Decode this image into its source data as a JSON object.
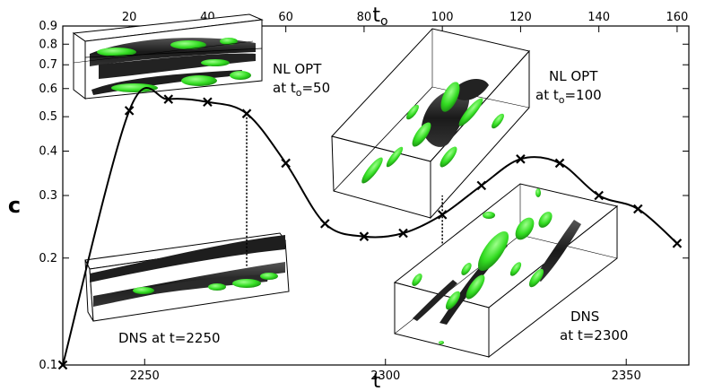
{
  "chart_data": {
    "type": "line",
    "title": "",
    "xlabel": "t",
    "x2label": "t",
    "x2label_sub": "o",
    "ylabel": "c",
    "y_scale": "log",
    "xlim": [
      2233,
      2363
    ],
    "x2lim": [
      3,
      163
    ],
    "ylim": [
      0.1,
      0.9
    ],
    "x_ticks": [
      2250,
      2300,
      2350
    ],
    "x_tick_labels": [
      "2250",
      "2300",
      "2350"
    ],
    "x2_ticks": [
      20,
      40,
      60,
      80,
      100,
      120,
      140,
      160
    ],
    "x2_tick_labels": [
      "20",
      "40",
      "60",
      "80",
      "100",
      "120",
      "140",
      "160"
    ],
    "y_ticks": [
      0.1,
      0.2,
      0.3,
      0.4,
      0.5,
      0.6,
      0.7,
      0.8,
      0.9
    ],
    "y_tick_labels": [
      "0.1",
      "0.2",
      "0.3",
      "0.4",
      "0.5",
      "0.6",
      "0.7",
      "0.8",
      "0.9"
    ],
    "series": [
      {
        "x2": [
          3,
          20,
          30,
          40,
          50,
          60,
          70,
          80,
          90,
          100,
          110,
          120,
          130,
          140,
          150,
          160
        ],
        "values": [
          0.1,
          0.52,
          0.56,
          0.55,
          0.51,
          0.37,
          0.25,
          0.23,
          0.235,
          0.265,
          0.32,
          0.38,
          0.37,
          0.3,
          0.275,
          0.22
        ],
        "marker": "x",
        "color": "#000000"
      }
    ],
    "reference_lines": [
      {
        "x2": 50,
        "y_from": 0.51,
        "y_to": 0.19
      },
      {
        "x2": 100,
        "y_from": 0.22,
        "y_to": 0.3
      }
    ],
    "annotations": [
      {
        "lines": [
          "NL OPT",
          "at t",
          "=50"
        ],
        "sub": "o"
      },
      {
        "lines": [
          "NL OPT",
          "at t",
          "=100"
        ],
        "sub": "o"
      },
      {
        "lines": [
          "DNS at t=2250"
        ]
      },
      {
        "lines": [
          "DNS",
          "at t=2300"
        ]
      }
    ],
    "inset_colors": {
      "isosurface_dark": "#2a2a2a",
      "isosurface_green": "#33dd22"
    }
  }
}
